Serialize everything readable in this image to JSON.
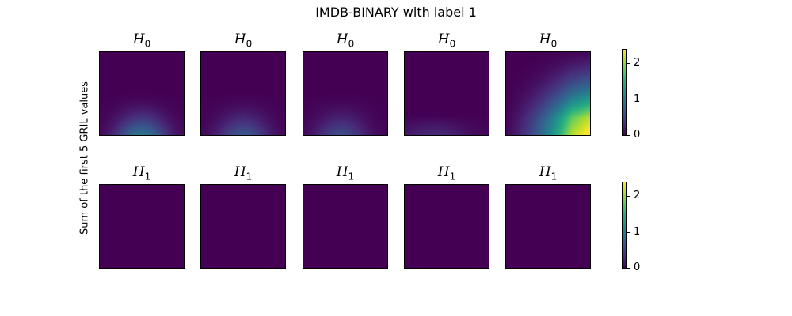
{
  "figure": {
    "title": "IMDB-BINARY with label 1",
    "ylabel": "Sum of the first 5 GRIL values"
  },
  "chart_data": {
    "type": "heatmap",
    "colormap": "viridis",
    "vmin": 0,
    "vmax": 2.4,
    "colorbar_ticks": [
      "0",
      "1",
      "2"
    ],
    "rows": [
      {
        "label_base": "H",
        "label_sub": "0",
        "panels": [
          {
            "pattern": "bottom_peak",
            "peak": 1.0,
            "peak_x": 0.5
          },
          {
            "pattern": "bottom_peak",
            "peak": 0.7,
            "peak_x": 0.5
          },
          {
            "pattern": "bottom_peak",
            "peak": 0.6,
            "peak_x": 0.45
          },
          {
            "pattern": "bottom_band",
            "peak": 0.3,
            "peak_x": 0.35
          },
          {
            "pattern": "corner_gradient",
            "peak": 2.4
          }
        ]
      },
      {
        "label_base": "H",
        "label_sub": "1",
        "panels": [
          {
            "pattern": "zero",
            "peak": 0
          },
          {
            "pattern": "zero",
            "peak": 0
          },
          {
            "pattern": "zero",
            "peak": 0
          },
          {
            "pattern": "zero",
            "peak": 0
          },
          {
            "pattern": "zero",
            "peak": 0
          }
        ]
      }
    ]
  }
}
